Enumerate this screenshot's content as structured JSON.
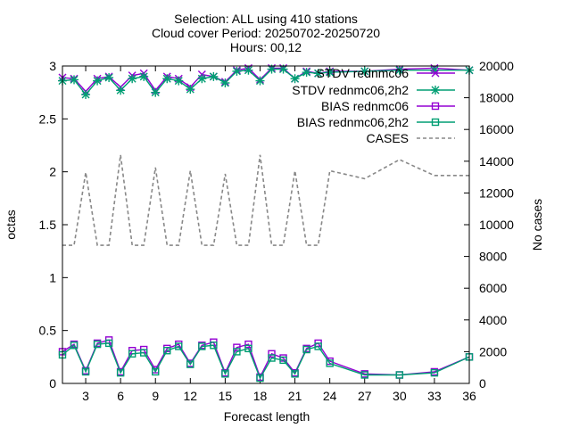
{
  "chart_data": {
    "type": "line",
    "title": [
      "Selection: ALL using   410 stations",
      "Cloud cover   Period: 20250702-20250720",
      "Hours: 00,12"
    ],
    "xlabel": "Forecast length",
    "ylabel": "octas",
    "y2label": "No cases",
    "xlim": [
      1,
      36
    ],
    "ylim": [
      0,
      3
    ],
    "y2lim": [
      0,
      20000
    ],
    "x_ticks": [
      3,
      6,
      9,
      12,
      15,
      18,
      21,
      24,
      27,
      30,
      33,
      36
    ],
    "y_ticks": [
      0,
      0.5,
      1,
      1.5,
      2,
      2.5,
      3
    ],
    "y2_ticks": [
      0,
      2000,
      4000,
      6000,
      8000,
      10000,
      12000,
      14000,
      16000,
      18000,
      20000
    ],
    "grid": false,
    "legend_position": "top-right",
    "x": [
      1,
      2,
      3,
      4,
      5,
      6,
      7,
      8,
      9,
      10,
      11,
      12,
      13,
      14,
      15,
      16,
      17,
      18,
      19,
      20,
      21,
      22,
      23,
      24,
      27,
      30,
      33,
      36
    ],
    "series": [
      {
        "name": "STDV rednmc06",
        "axis": "y",
        "color": "#9400d3",
        "marker": "x",
        "dash": "solid",
        "values": [
          2.89,
          2.88,
          2.76,
          2.88,
          2.9,
          2.8,
          2.91,
          2.93,
          2.77,
          2.9,
          2.88,
          2.8,
          2.92,
          2.9,
          2.85,
          2.96,
          2.98,
          2.87,
          2.98,
          2.98,
          2.88,
          2.95,
          2.93,
          2.95,
          2.95,
          2.97,
          2.98,
          2.96
        ]
      },
      {
        "name": "STDV rednmc06,2h2",
        "axis": "y",
        "color": "#009e73",
        "marker": "*",
        "dash": "solid",
        "values": [
          2.86,
          2.87,
          2.73,
          2.86,
          2.89,
          2.77,
          2.88,
          2.9,
          2.75,
          2.88,
          2.86,
          2.78,
          2.88,
          2.9,
          2.84,
          2.95,
          2.96,
          2.86,
          2.97,
          2.97,
          2.88,
          2.94,
          2.93,
          2.94,
          2.95,
          2.96,
          2.96,
          2.96
        ]
      },
      {
        "name": "BIAS rednmc06",
        "axis": "y",
        "color": "#9400d3",
        "marker": "square",
        "dash": "solid",
        "values": [
          0.3,
          0.37,
          0.12,
          0.38,
          0.41,
          0.11,
          0.31,
          0.32,
          0.13,
          0.33,
          0.37,
          0.19,
          0.36,
          0.39,
          0.1,
          0.34,
          0.37,
          0.06,
          0.28,
          0.24,
          0.1,
          0.33,
          0.38,
          0.21,
          0.09,
          0.08,
          0.11,
          0.25
        ]
      },
      {
        "name": "BIAS rednmc06,2h2",
        "axis": "y",
        "color": "#009e73",
        "marker": "square",
        "dash": "solid",
        "values": [
          0.27,
          0.36,
          0.11,
          0.37,
          0.38,
          0.1,
          0.28,
          0.29,
          0.11,
          0.31,
          0.35,
          0.18,
          0.35,
          0.36,
          0.09,
          0.3,
          0.33,
          0.05,
          0.24,
          0.22,
          0.09,
          0.32,
          0.35,
          0.19,
          0.08,
          0.08,
          0.1,
          0.25
        ]
      },
      {
        "name": "CASES",
        "axis": "y2",
        "color": "#888888",
        "marker": "none",
        "dash": "dashed",
        "values": [
          8700,
          8700,
          13300,
          8700,
          8700,
          14400,
          8700,
          8700,
          13600,
          8700,
          8700,
          13400,
          8700,
          8700,
          13200,
          8700,
          8700,
          14400,
          8700,
          8700,
          13400,
          8700,
          8700,
          13400,
          12900,
          14100,
          13100,
          13100
        ]
      }
    ]
  }
}
